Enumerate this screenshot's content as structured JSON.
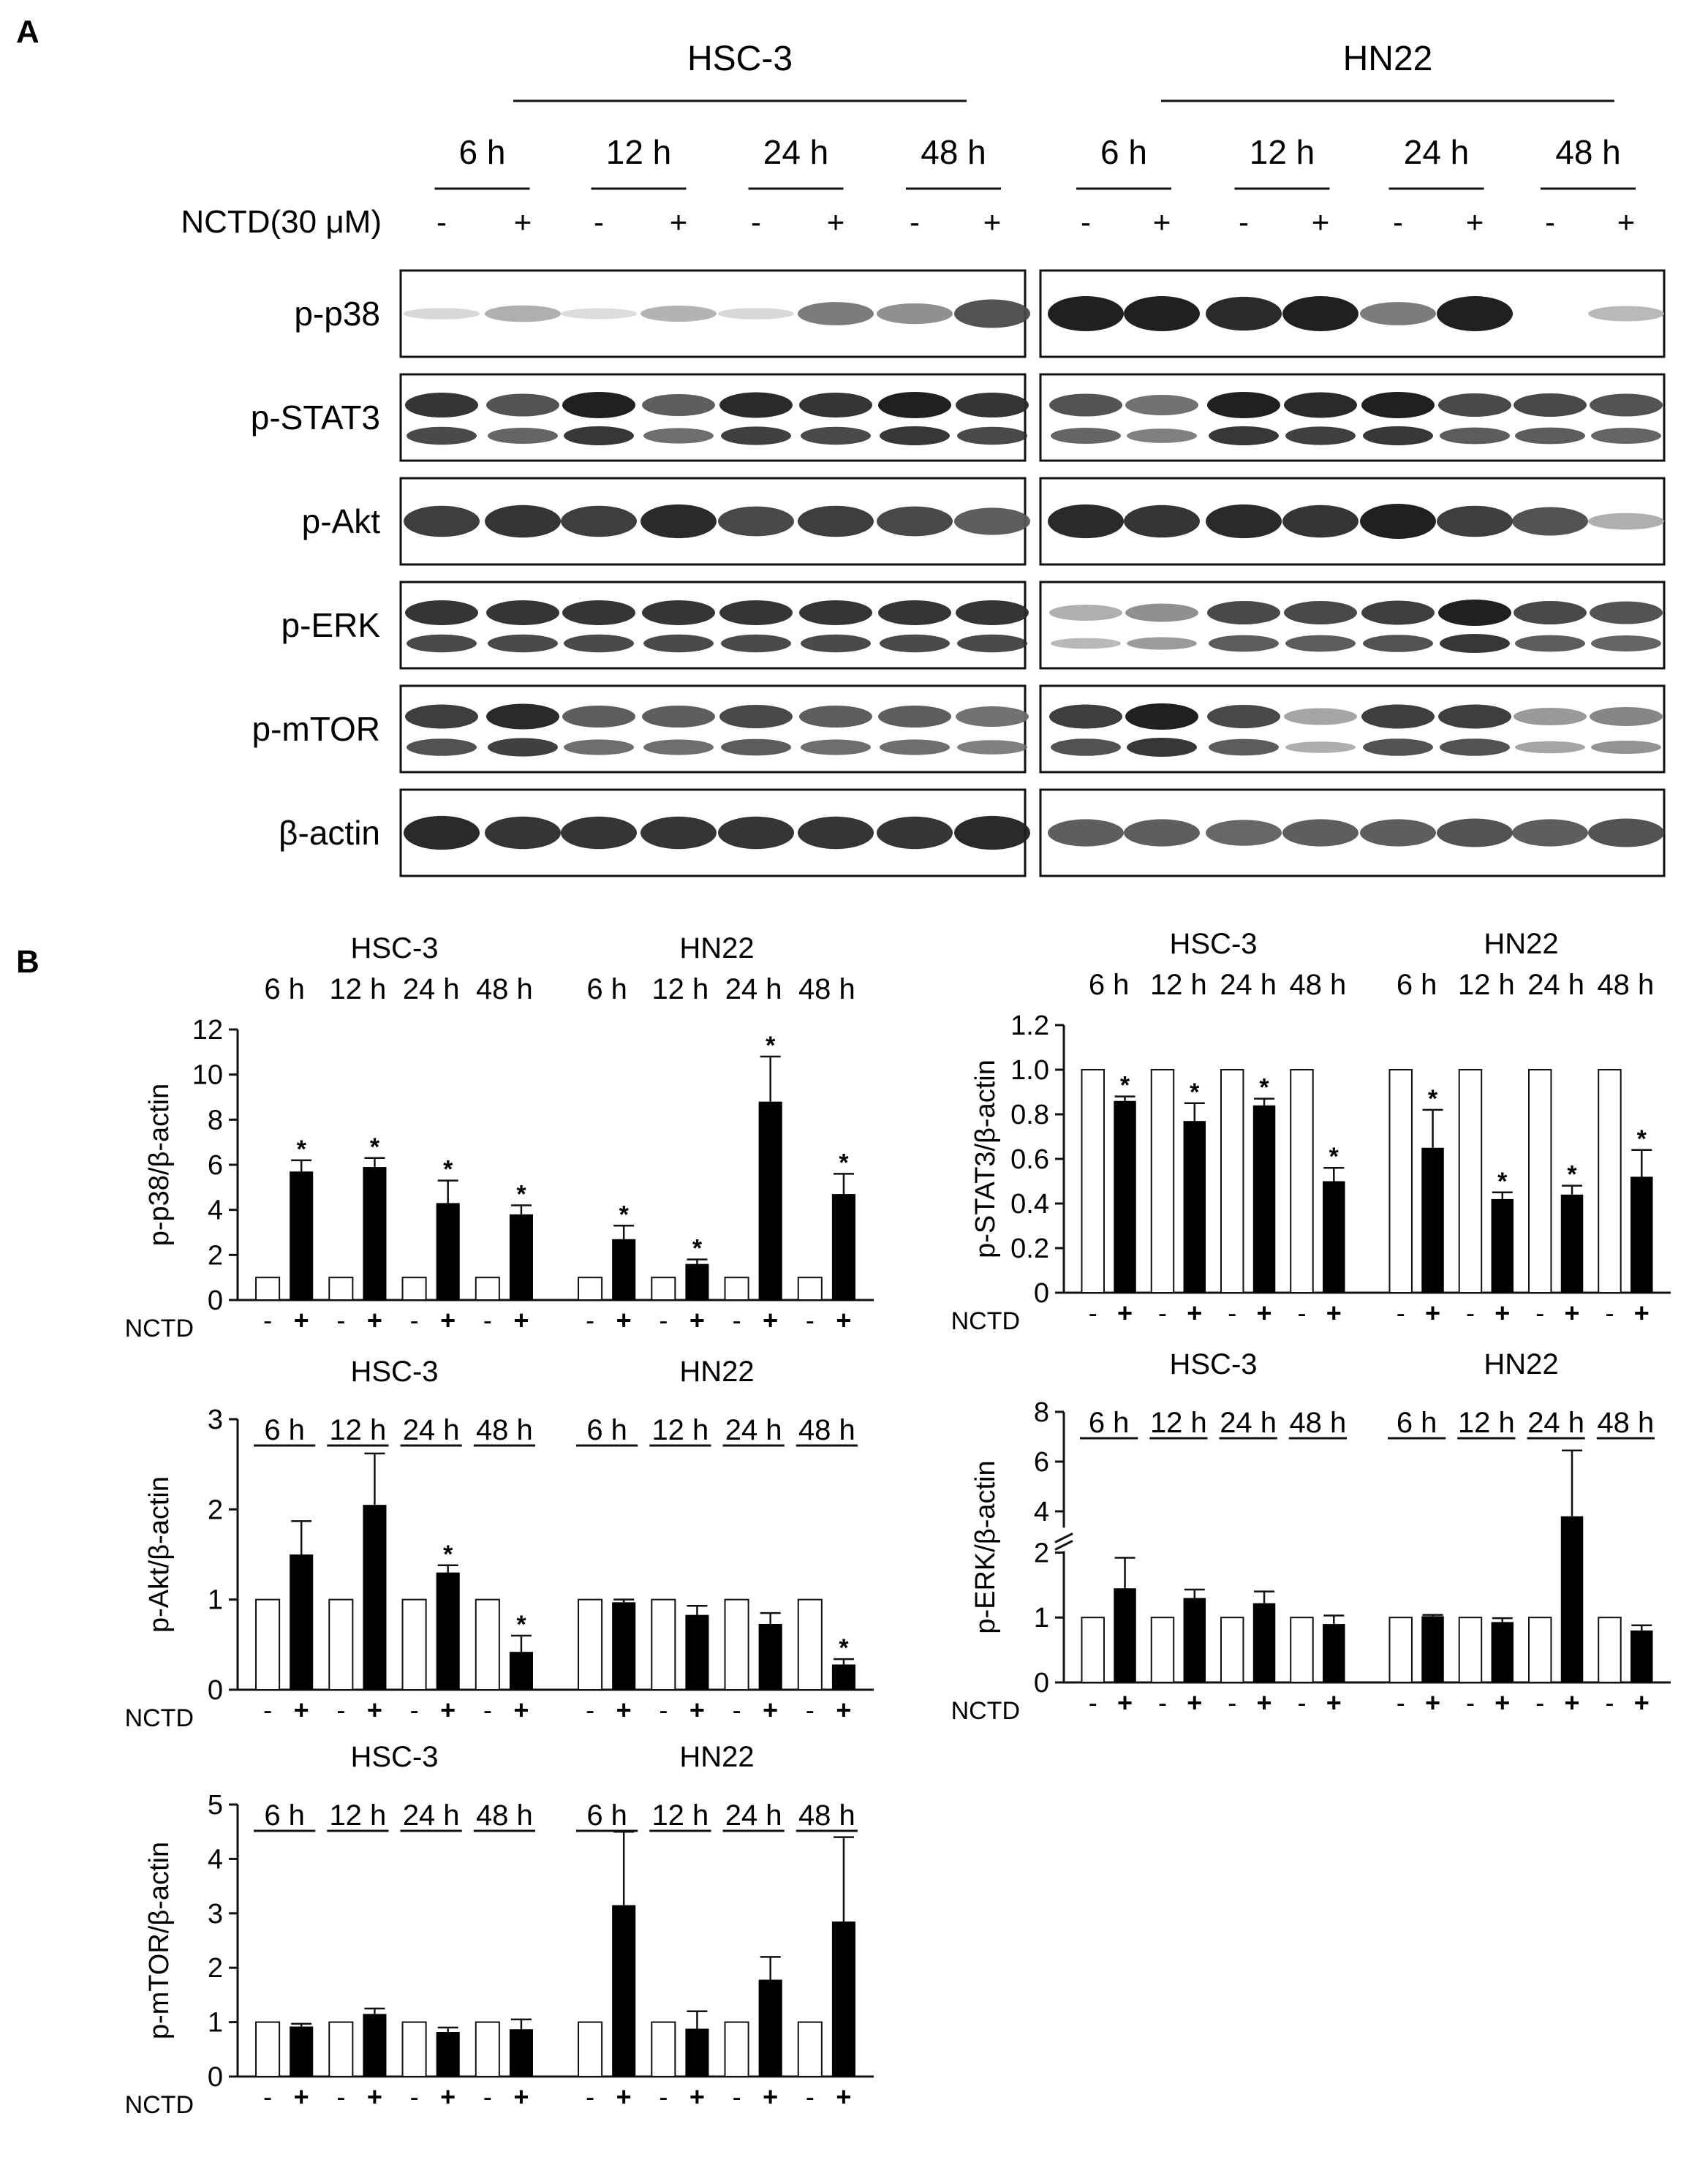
{
  "panel_labels": {
    "a": "A",
    "b": "B"
  },
  "blot": {
    "cell_lines": [
      "HSC-3",
      "HN22"
    ],
    "timepoints": [
      "6 h",
      "12 h",
      "24 h",
      "48 h"
    ],
    "treatment_label": "NCTD(30 μM)",
    "signs": [
      "-",
      "+"
    ],
    "proteins": [
      {
        "name": "p-p38",
        "bands": 1,
        "intensity": [
          [
            0.1,
            0.3,
            0.08,
            0.28,
            0.1,
            0.55,
            0.45,
            0.75
          ],
          [
            1.0,
            1.0,
            0.95,
            1.0,
            0.55,
            1.0,
            0.0,
            0.25
          ]
        ]
      },
      {
        "name": "p-STAT3",
        "bands": 2,
        "intensity": [
          [
            0.9,
            0.75,
            1.0,
            0.7,
            0.95,
            0.9,
            1.0,
            0.9
          ],
          [
            0.75,
            0.6,
            1.0,
            0.95,
            1.0,
            0.8,
            0.8,
            0.75
          ]
        ]
      },
      {
        "name": "p-Akt",
        "bands": 1,
        "intensity": [
          [
            0.85,
            0.9,
            0.85,
            0.95,
            0.8,
            0.85,
            0.8,
            0.7
          ],
          [
            0.95,
            0.9,
            0.95,
            0.9,
            1.0,
            0.85,
            0.75,
            0.3
          ]
        ]
      },
      {
        "name": "p-ERK",
        "bands": 2,
        "intensity": [
          [
            0.9,
            0.9,
            0.9,
            0.9,
            0.9,
            0.9,
            0.9,
            0.9
          ],
          [
            0.3,
            0.45,
            0.8,
            0.8,
            0.85,
            1.0,
            0.8,
            0.75
          ]
        ]
      },
      {
        "name": "p-mTOR",
        "bands": 2,
        "intensity": [
          [
            0.85,
            0.95,
            0.7,
            0.7,
            0.8,
            0.7,
            0.7,
            0.6
          ],
          [
            0.85,
            1.0,
            0.8,
            0.35,
            0.85,
            0.85,
            0.4,
            0.5
          ]
        ]
      },
      {
        "name": "β-actin",
        "bands": 1,
        "intensity": [
          [
            0.95,
            0.9,
            0.9,
            0.9,
            0.9,
            0.9,
            0.9,
            0.95
          ],
          [
            0.7,
            0.7,
            0.65,
            0.7,
            0.7,
            0.75,
            0.7,
            0.75
          ]
        ]
      }
    ]
  },
  "chart_data": [
    {
      "type": "bar",
      "ylabel": "p-p38/β-actin",
      "ylim": [
        0,
        12
      ],
      "yticks": [
        "0",
        "2",
        "4",
        "6",
        "8",
        "10",
        "12"
      ],
      "group_titles": [
        "HSC-3",
        "HN22"
      ],
      "timepoints": [
        "6 h",
        "12 h",
        "24 h",
        "48 h"
      ],
      "underline_times": false,
      "treatment_label": "NCTD",
      "signs": [
        "-",
        "+"
      ],
      "control": [
        1,
        1,
        1,
        1,
        1,
        1,
        1,
        1
      ],
      "treated": [
        5.7,
        5.9,
        4.3,
        3.8,
        2.7,
        1.6,
        8.8,
        4.7
      ],
      "treated_err": [
        0.5,
        0.4,
        1.0,
        0.4,
        0.6,
        0.2,
        2.0,
        0.9
      ],
      "significant": [
        true,
        true,
        true,
        true,
        true,
        true,
        true,
        true
      ],
      "star": "*"
    },
    {
      "type": "bar",
      "ylabel": "p-STAT3/β-actin",
      "ylim": [
        0,
        1.2
      ],
      "yticks": [
        "0",
        "0.2",
        "0.4",
        "0.6",
        "0.8",
        "1.0",
        "1.2"
      ],
      "group_titles": [
        "HSC-3",
        "HN22"
      ],
      "timepoints": [
        "6 h",
        "12 h",
        "24 h",
        "48 h"
      ],
      "underline_times": false,
      "treatment_label": "NCTD",
      "signs": [
        "-",
        "+"
      ],
      "control": [
        1,
        1,
        1,
        1,
        1,
        1,
        1,
        1
      ],
      "treated": [
        0.86,
        0.77,
        0.84,
        0.5,
        0.65,
        0.42,
        0.44,
        0.52
      ],
      "treated_err": [
        0.02,
        0.08,
        0.03,
        0.06,
        0.17,
        0.03,
        0.04,
        0.12
      ],
      "significant": [
        true,
        true,
        true,
        true,
        true,
        true,
        true,
        true
      ],
      "star": "*"
    },
    {
      "type": "bar",
      "ylabel": "p-Akt/β-actin",
      "ylim": [
        0,
        3
      ],
      "yticks": [
        "0",
        "1",
        "2",
        "3"
      ],
      "group_titles": [
        "HSC-3",
        "HN22"
      ],
      "timepoints": [
        "6 h",
        "12 h",
        "24 h",
        "48 h"
      ],
      "underline_times": true,
      "treatment_label": "NCTD",
      "signs": [
        "-",
        "+"
      ],
      "control": [
        1,
        1,
        1,
        1,
        1,
        1,
        1,
        1
      ],
      "treated": [
        1.5,
        2.05,
        1.3,
        0.42,
        0.97,
        0.83,
        0.73,
        0.28
      ],
      "treated_err": [
        0.37,
        0.57,
        0.08,
        0.18,
        0.03,
        0.1,
        0.12,
        0.06
      ],
      "significant": [
        false,
        false,
        true,
        true,
        false,
        false,
        false,
        true
      ],
      "star": "*"
    },
    {
      "type": "bar",
      "ylabel": "p-ERK/β-actin",
      "ylim": [
        0,
        8
      ],
      "broken_axis": {
        "lower": [
          0,
          2
        ],
        "upper": [
          3.4,
          8
        ]
      },
      "yticks": [
        "0",
        "1",
        "2",
        "4",
        "6",
        "8"
      ],
      "group_titles": [
        "HSC-3",
        "HN22"
      ],
      "timepoints": [
        "6 h",
        "12 h",
        "24 h",
        "48 h"
      ],
      "underline_times": true,
      "treatment_label": "NCTD",
      "signs": [
        "-",
        "+"
      ],
      "control": [
        1,
        1,
        1,
        1,
        1,
        1,
        1,
        1
      ],
      "treated": [
        1.45,
        1.3,
        1.22,
        0.9,
        1.02,
        0.93,
        3.8,
        0.8
      ],
      "treated_err": [
        0.47,
        0.13,
        0.18,
        0.13,
        0.02,
        0.06,
        2.65,
        0.08
      ],
      "significant": [
        false,
        false,
        false,
        false,
        false,
        false,
        false,
        false
      ],
      "star": "*"
    },
    {
      "type": "bar",
      "ylabel": "p-mTOR/β-actin",
      "ylim": [
        0,
        5
      ],
      "yticks": [
        "0",
        "1",
        "2",
        "3",
        "4",
        "5"
      ],
      "group_titles": [
        "HSC-3",
        "HN22"
      ],
      "timepoints": [
        "6 h",
        "12 h",
        "24 h",
        "48 h"
      ],
      "underline_times": true,
      "treatment_label": "NCTD",
      "signs": [
        "-",
        "+"
      ],
      "control": [
        1,
        1,
        1,
        1,
        1,
        1,
        1,
        1
      ],
      "treated": [
        0.92,
        1.15,
        0.82,
        0.87,
        3.15,
        0.88,
        1.78,
        2.85
      ],
      "treated_err": [
        0.05,
        0.1,
        0.08,
        0.18,
        1.35,
        0.32,
        0.42,
        1.55
      ],
      "significant": [
        false,
        false,
        false,
        false,
        false,
        false,
        false,
        false
      ],
      "star": "*"
    }
  ]
}
